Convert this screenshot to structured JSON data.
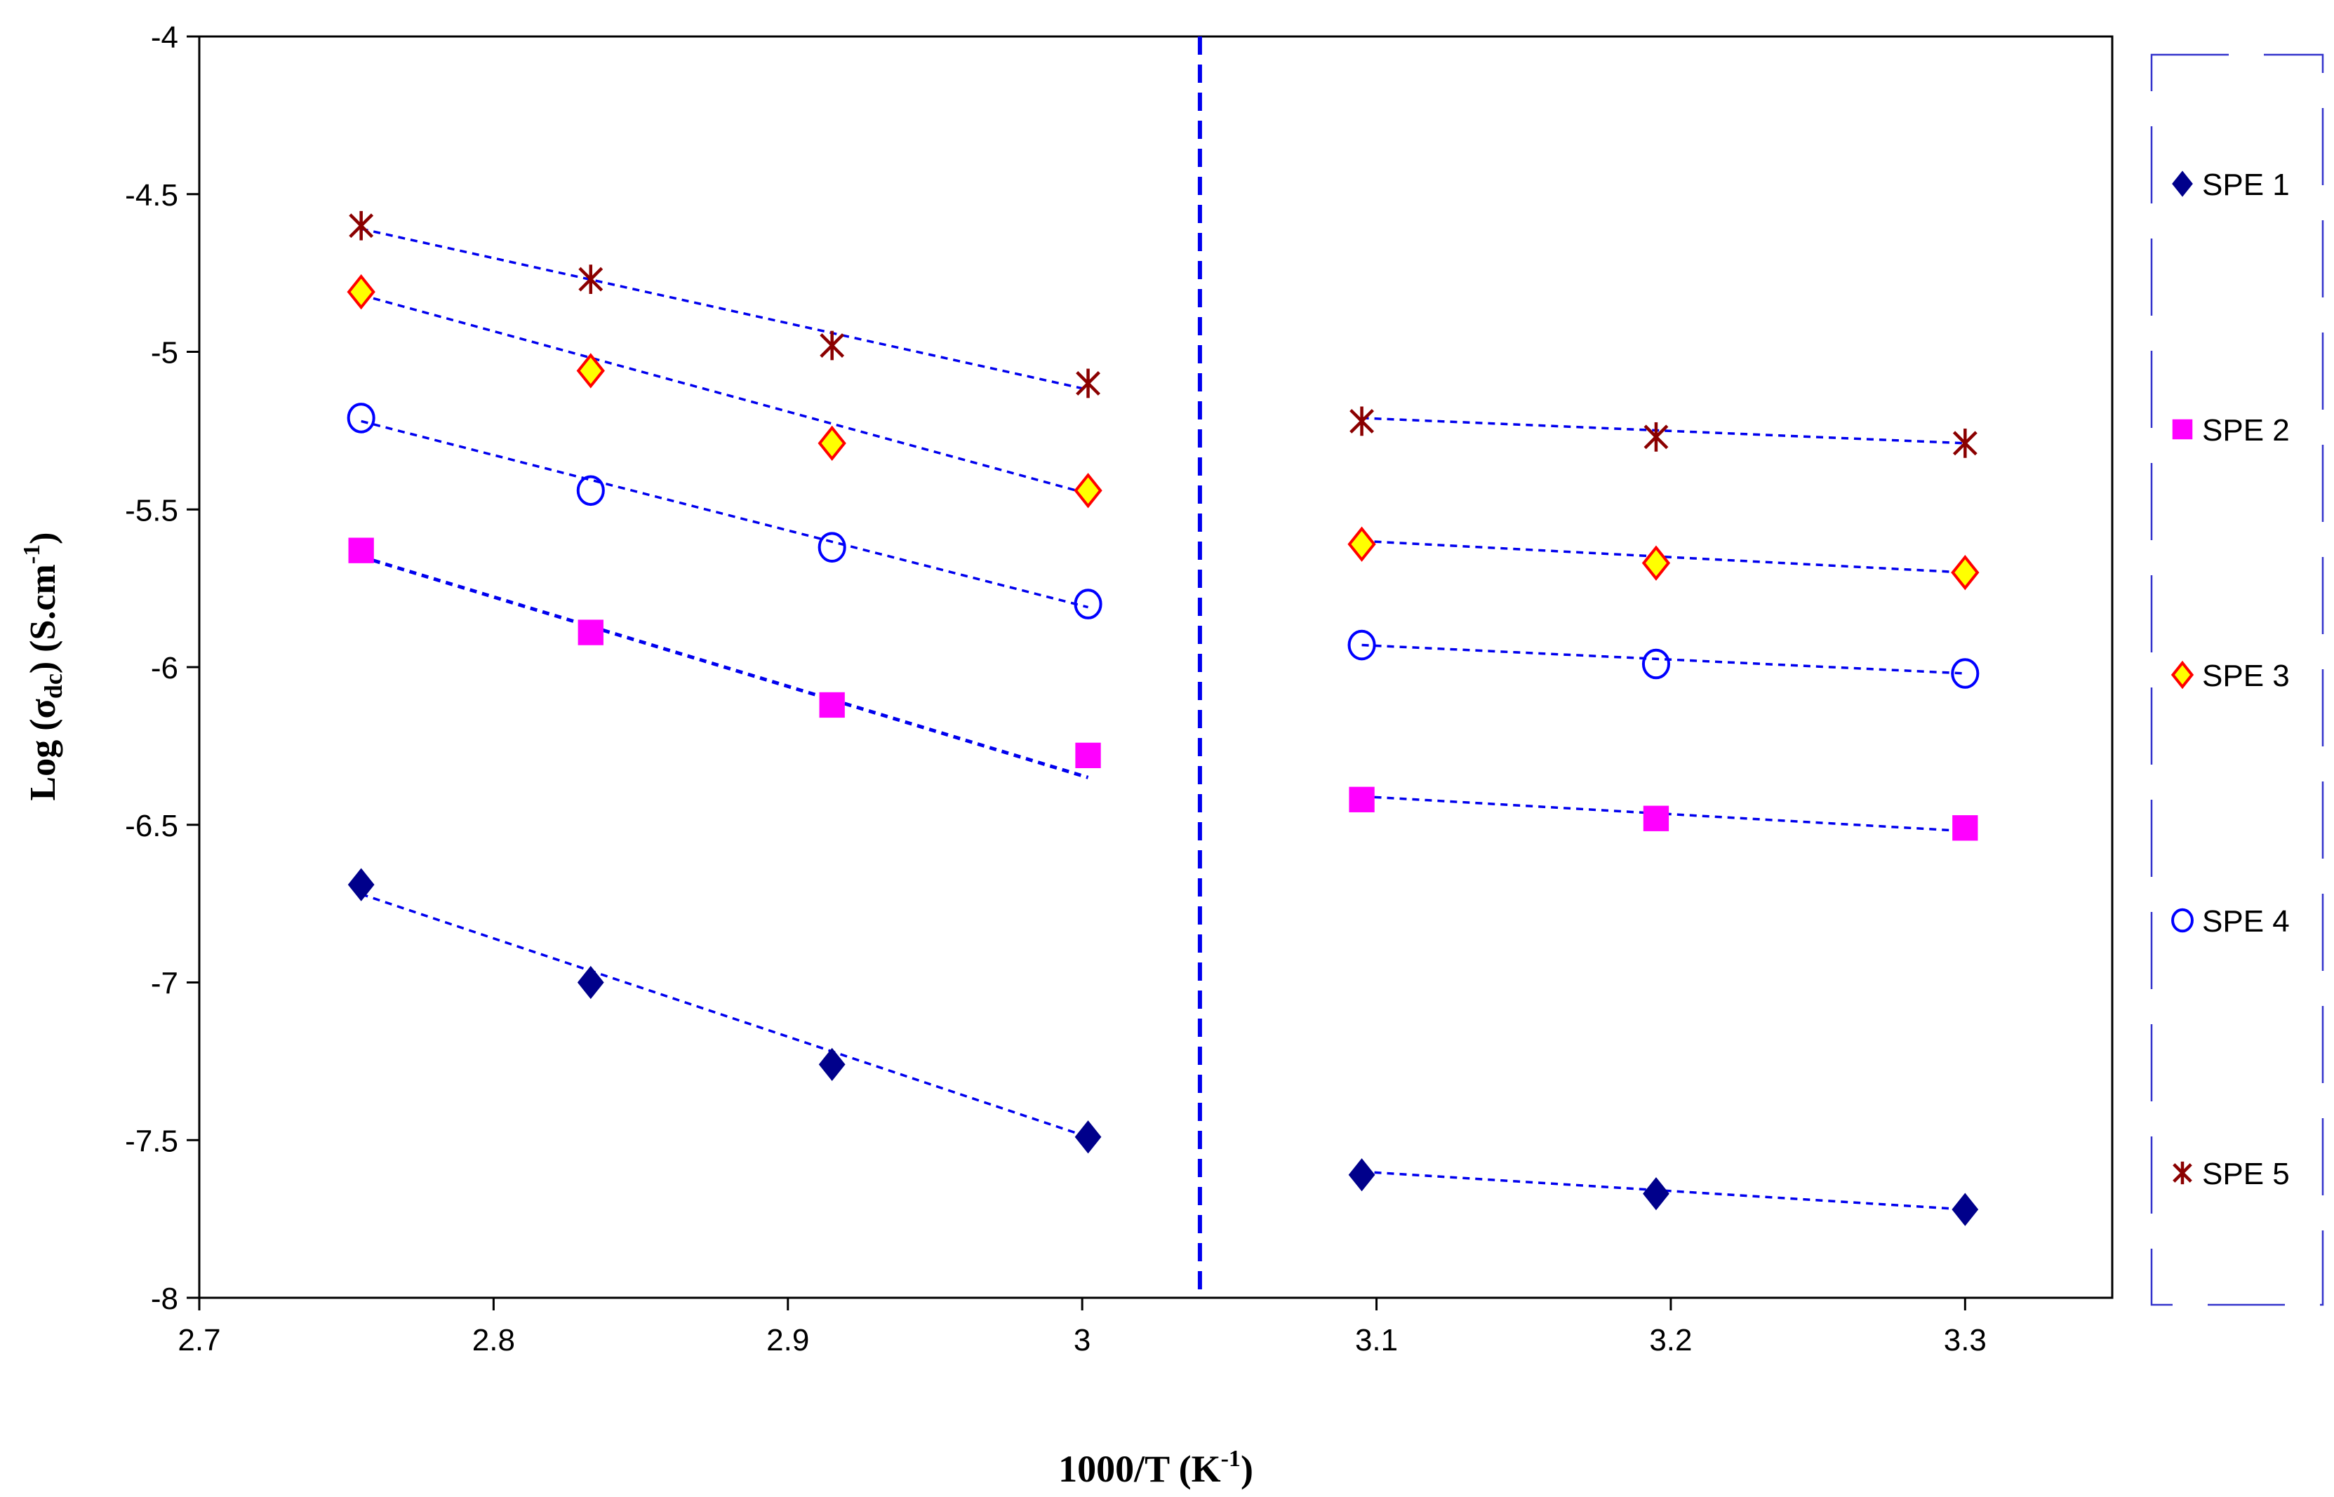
{
  "chart_data": {
    "type": "scatter",
    "title": "",
    "xlabel": {
      "main": "1000/T (K",
      "sup": "-1",
      "tail": ")"
    },
    "ylabel": {
      "prefix": "Log (",
      "sigma": "σ",
      "sub": "dc",
      "mid": ") (S.cm",
      "sup": "-1",
      "tail": ")"
    },
    "xlim": [
      2.7,
      3.35
    ],
    "ylim": [
      -8,
      -4
    ],
    "x_ticks": [
      "2.7",
      "2.8",
      "2.9",
      "3",
      "3.1",
      "3.2",
      "3.3"
    ],
    "y_ticks": [
      "-4",
      "-4.5",
      "-5",
      "-5.5",
      "-6",
      "-6.5",
      "-7",
      "-7.5",
      "-8"
    ],
    "divider_x": 3.04,
    "grid": false,
    "legend_position": "right",
    "series": [
      {
        "name": "SPE 1",
        "marker": "diamond",
        "color": "#00008B",
        "x": [
          2.755,
          2.833,
          2.915,
          3.002,
          3.095,
          3.195,
          3.3
        ],
        "y": [
          -6.69,
          -7.0,
          -7.26,
          -7.49,
          -7.61,
          -7.67,
          -7.72
        ],
        "fit_low": [
          [
            2.755,
            -6.72
          ],
          [
            3.002,
            -7.49
          ]
        ],
        "fit_high": [
          [
            3.095,
            -7.6
          ],
          [
            3.3,
            -7.72
          ]
        ]
      },
      {
        "name": "SPE 2",
        "marker": "square",
        "color": "#FF00FF",
        "x": [
          2.755,
          2.833,
          2.915,
          3.002,
          3.095,
          3.195,
          3.3
        ],
        "y": [
          -5.63,
          -5.89,
          -6.12,
          -6.28,
          -6.42,
          -6.48,
          -6.51
        ],
        "fit_low": [
          [
            2.755,
            -5.65
          ],
          [
            3.002,
            -6.35
          ]
        ],
        "fit_high": [
          [
            3.095,
            -6.41
          ],
          [
            3.3,
            -6.52
          ]
        ]
      },
      {
        "name": "SPE 3",
        "marker": "diamond-outline",
        "color": "#FFFF00",
        "stroke": "#FF0000",
        "x": [
          2.755,
          2.833,
          2.915,
          3.002,
          3.095,
          3.195,
          3.3
        ],
        "y": [
          -4.81,
          -5.06,
          -5.29,
          -5.44,
          -5.61,
          -5.67,
          -5.7
        ],
        "fit_low": [
          [
            2.755,
            -4.82
          ],
          [
            3.002,
            -5.45
          ]
        ],
        "fit_high": [
          [
            3.095,
            -5.6
          ],
          [
            3.3,
            -5.7
          ]
        ]
      },
      {
        "name": "SPE 4",
        "marker": "circle",
        "color": "#0000FF",
        "x": [
          2.755,
          2.833,
          2.915,
          3.002,
          3.095,
          3.195,
          3.3
        ],
        "y": [
          -5.21,
          -5.44,
          -5.62,
          -5.8,
          -5.93,
          -5.99,
          -6.02
        ],
        "fit_low": [
          [
            2.755,
            -5.22
          ],
          [
            3.002,
            -5.81
          ]
        ],
        "fit_high": [
          [
            3.095,
            -5.93
          ],
          [
            3.3,
            -6.02
          ]
        ]
      },
      {
        "name": "SPE 5",
        "marker": "star",
        "color": "#8B0000",
        "x": [
          2.755,
          2.833,
          2.915,
          3.002,
          3.095,
          3.195,
          3.3
        ],
        "y": [
          -4.6,
          -4.77,
          -4.98,
          -5.1,
          -5.22,
          -5.27,
          -5.29
        ],
        "fit_low": [
          [
            2.755,
            -4.61
          ],
          [
            3.002,
            -5.12
          ]
        ],
        "fit_high": [
          [
            3.095,
            -5.21
          ],
          [
            3.3,
            -5.29
          ]
        ]
      }
    ]
  }
}
